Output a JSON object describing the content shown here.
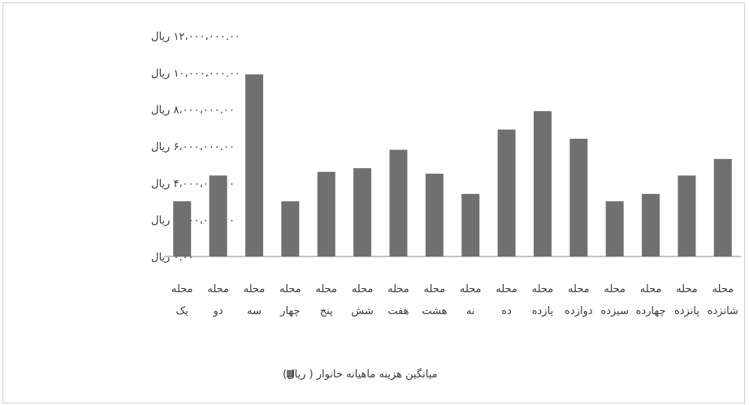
{
  "chart_data": {
    "type": "bar",
    "title": "",
    "xlabel": "",
    "ylabel": "",
    "ylim": [
      0,
      12000000
    ],
    "yticks": [
      0,
      2000000,
      4000000,
      6000000,
      8000000,
      10000000,
      12000000
    ],
    "ytick_labels": [
      "۰.۰۰ ریال",
      "۲،۰۰۰،۰۰۰.۰۰ ریال",
      "۴،۰۰۰،۰۰۰.۰۰ ریال",
      "۶،۰۰۰،۰۰۰.۰۰ ریال",
      "۸،۰۰۰،۰۰۰.۰۰ ریال",
      "۱۰،۰۰۰،۰۰۰.۰۰ ریال",
      "۱۲،۰۰۰،۰۰۰.۰۰ ریال"
    ],
    "categories": [
      {
        "line1": "محله",
        "line2": "یک"
      },
      {
        "line1": "محله",
        "line2": "دو"
      },
      {
        "line1": "محله",
        "line2": "سه"
      },
      {
        "line1": "محله",
        "line2": "چهار"
      },
      {
        "line1": "محله",
        "line2": "پنج"
      },
      {
        "line1": "محله",
        "line2": "شش"
      },
      {
        "line1": "محله",
        "line2": "هفت"
      },
      {
        "line1": "محله",
        "line2": "هشت"
      },
      {
        "line1": "محله",
        "line2": "نه"
      },
      {
        "line1": "محله",
        "line2": "ده"
      },
      {
        "line1": "محله",
        "line2": "یازده"
      },
      {
        "line1": "محله",
        "line2": "دوازده"
      },
      {
        "line1": "محله",
        "line2": "سیزده"
      },
      {
        "line1": "محله",
        "line2": "چهارده"
      },
      {
        "line1": "محله",
        "line2": "پانزده"
      },
      {
        "line1": "محله",
        "line2": "شانزده"
      }
    ],
    "series": [
      {
        "name": "میانگین هزینه ماهیانه خانوار (ریال)",
        "color": "#707070",
        "values": [
          3000000,
          4400000,
          9900000,
          3000000,
          4600000,
          4800000,
          5800000,
          4500000,
          3400000,
          6900000,
          7900000,
          6400000,
          3000000,
          3400000,
          4400000,
          5300000
        ]
      }
    ],
    "legend": {
      "position": "bottom",
      "text": "میانگین هزینه ماهیانه خانوار ( ریال)"
    },
    "grid": false
  }
}
